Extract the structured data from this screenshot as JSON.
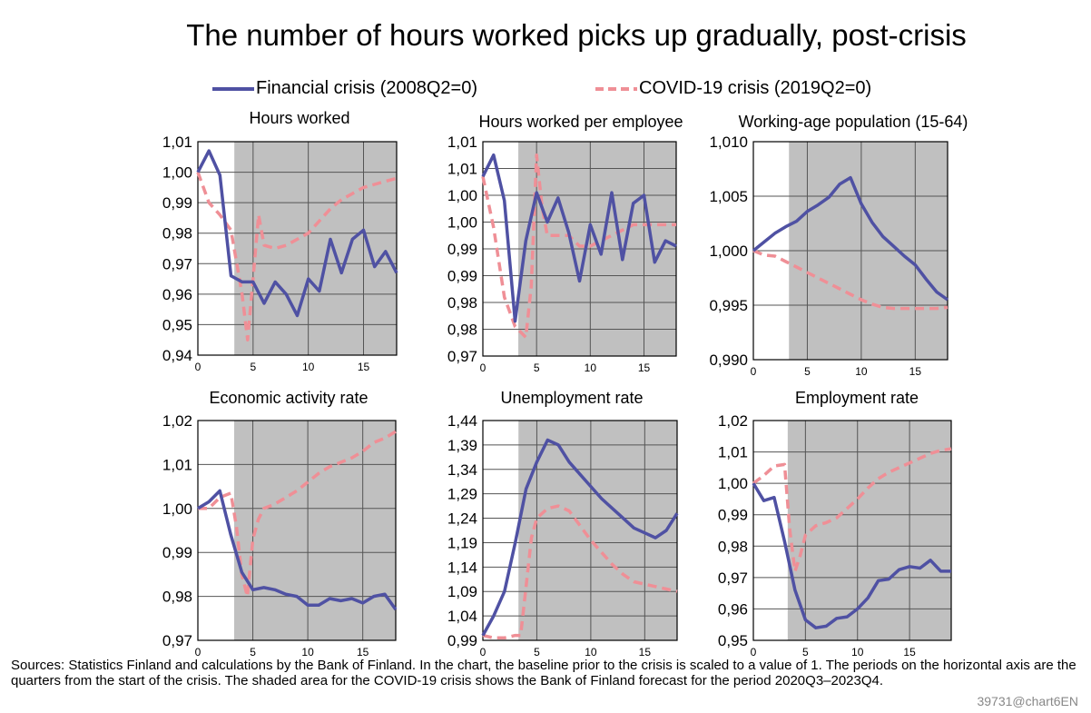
{
  "title": "The number of hours worked picks up gradually, post-crisis",
  "legend": {
    "financial": "Financial crisis (2008Q2=0)",
    "covid": "COVID-19 crisis (2019Q2=0)"
  },
  "colors": {
    "financial": "#4f51a3",
    "covid": "#ef8f96",
    "shade": "#c0c0c0"
  },
  "footnote": "Sources: Statistics Finland and calculations by the Bank of Finland. In the chart, the baseline prior to the crisis is scaled to a value of 1. The periods on the horizontal axis are the quarters from the start of the crisis. The shaded area for the COVID-19 crisis shows the Bank of Finland forecast for the period 2020Q3–2023Q4.",
  "source_id": "39731@chart6EN",
  "chart_data": [
    {
      "type": "line",
      "title": "Hours worked",
      "xlim": [
        0,
        18
      ],
      "ylim": [
        0.94,
        1.01
      ],
      "xticks": [
        "0",
        "5",
        "10",
        "15"
      ],
      "yticks": [
        "1,01",
        "1,00",
        "0,99",
        "0,98",
        "0,97",
        "0,96",
        "0,95",
        "0,94"
      ],
      "shaded_from": 3.3,
      "series": [
        {
          "name": "Financial crisis (2008Q2=0)",
          "x": [
            0,
            1,
            2,
            3,
            4,
            5,
            6,
            7,
            8,
            9,
            10,
            11,
            12,
            13,
            14,
            15,
            16,
            17,
            18
          ],
          "y": [
            1.0,
            1.007,
            0.999,
            0.966,
            0.964,
            0.964,
            0.957,
            0.964,
            0.96,
            0.953,
            0.965,
            0.961,
            0.978,
            0.967,
            0.978,
            0.981,
            0.969,
            0.974,
            0.967
          ]
        },
        {
          "name": "COVID-19 crisis (2019Q2=0)",
          "x": [
            0,
            1,
            2,
            3,
            4,
            4.5,
            5,
            5.5,
            6,
            7,
            8,
            9,
            10,
            11,
            12,
            13,
            14,
            15,
            16,
            17,
            18
          ],
          "y": [
            1.0,
            0.99,
            0.986,
            0.981,
            0.96,
            0.945,
            0.965,
            0.986,
            0.976,
            0.975,
            0.976,
            0.978,
            0.98,
            0.984,
            0.988,
            0.991,
            0.993,
            0.995,
            0.996,
            0.997,
            0.998
          ]
        }
      ]
    },
    {
      "type": "line",
      "title": "Hours worked per employee",
      "xlim": [
        0,
        18
      ],
      "ylim": [
        0.97,
        1.01
      ],
      "xticks": [
        "0",
        "5",
        "10",
        "15"
      ],
      "yticks": [
        "1,01",
        "1,01",
        "1,00",
        "1,00",
        "0,99",
        "0,99",
        "0,98",
        "0,98",
        "0,97"
      ],
      "shaded_from": 3.3,
      "series": [
        {
          "name": "Financial crisis (2008Q2=0)",
          "x": [
            0,
            1,
            2,
            3,
            4,
            5,
            6,
            7,
            8,
            9,
            10,
            11,
            12,
            13,
            14,
            15,
            16,
            17,
            18
          ],
          "y": [
            1.0035,
            1.0075,
            0.999,
            0.9765,
            0.9915,
            1.0005,
            0.995,
            0.9995,
            0.993,
            0.984,
            0.9945,
            0.989,
            1.0005,
            0.988,
            0.9985,
            1.0,
            0.9875,
            0.9915,
            0.9905
          ]
        },
        {
          "name": "COVID-19 crisis (2019Q2=0)",
          "x": [
            0,
            1,
            2,
            3,
            4,
            4.5,
            5,
            5.5,
            6,
            7,
            8,
            9,
            10,
            11,
            12,
            13,
            14,
            15,
            16,
            17,
            18
          ],
          "y": [
            1.0035,
            0.994,
            0.981,
            0.9755,
            0.9735,
            0.983,
            1.0075,
            0.998,
            0.9925,
            0.9925,
            0.9925,
            0.9905,
            0.9905,
            0.9915,
            0.9925,
            0.9935,
            0.9945,
            0.9945,
            0.9945,
            0.9945,
            0.9945
          ]
        }
      ]
    },
    {
      "type": "line",
      "title": "Working-age population (15-64)",
      "xlim": [
        0,
        18
      ],
      "ylim": [
        0.99,
        1.01
      ],
      "xticks": [
        "0",
        "5",
        "10",
        "15"
      ],
      "yticks": [
        "1,010",
        "1,005",
        "1,000",
        "0,995",
        "0,990"
      ],
      "shaded_from": 3.3,
      "series": [
        {
          "name": "Financial crisis (2008Q2=0)",
          "x": [
            0,
            1,
            2,
            3,
            4,
            5,
            6,
            7,
            8,
            9,
            10,
            11,
            12,
            13,
            14,
            15,
            16,
            17,
            18
          ],
          "y": [
            1.0,
            1.0008,
            1.0016,
            1.0022,
            1.0027,
            1.0036,
            1.0042,
            1.0049,
            1.0061,
            1.0067,
            1.0043,
            1.0026,
            1.0013,
            1.0004,
            0.9995,
            0.9987,
            0.9974,
            0.9962,
            0.9955
          ]
        },
        {
          "name": "COVID-19 crisis (2019Q2=0)",
          "x": [
            0,
            1,
            2,
            3,
            4,
            5,
            6,
            7,
            8,
            9,
            10,
            11,
            12,
            13,
            14,
            15,
            16,
            17,
            18
          ],
          "y": [
            1.0,
            0.9996,
            0.9995,
            0.999,
            0.9985,
            0.998,
            0.9975,
            0.997,
            0.9965,
            0.996,
            0.9955,
            0.9951,
            0.9948,
            0.9947,
            0.9947,
            0.9947,
            0.9947,
            0.9947,
            0.9948
          ]
        }
      ]
    },
    {
      "type": "line",
      "title": "Economic activity rate",
      "xlim": [
        0,
        18
      ],
      "ylim": [
        0.97,
        1.02
      ],
      "xticks": [
        "0",
        "5",
        "10",
        "15"
      ],
      "yticks": [
        "1,02",
        "1,01",
        "1,00",
        "0,99",
        "0,98",
        "0,97"
      ],
      "shaded_from": 3.3,
      "series": [
        {
          "name": "Financial crisis (2008Q2=0)",
          "x": [
            0,
            1,
            2,
            3,
            4,
            5,
            6,
            7,
            8,
            9,
            10,
            11,
            12,
            13,
            14,
            15,
            16,
            17,
            18
          ],
          "y": [
            1.0,
            1.0015,
            1.004,
            0.994,
            0.9855,
            0.9815,
            0.982,
            0.9815,
            0.9805,
            0.98,
            0.978,
            0.978,
            0.9795,
            0.979,
            0.9795,
            0.9785,
            0.98,
            0.9805,
            0.977
          ]
        },
        {
          "name": "COVID-19 crisis (2019Q2=0)",
          "x": [
            0,
            1,
            2,
            3,
            3.5,
            4,
            4.5,
            5,
            5.5,
            6,
            7,
            8,
            9,
            10,
            11,
            12,
            13,
            14,
            15,
            16,
            17,
            18
          ],
          "y": [
            1.0,
            1.0,
            1.0025,
            1.0035,
            0.996,
            0.985,
            0.98,
            0.993,
            0.9975,
            1.0,
            1.001,
            1.0025,
            1.004,
            1.006,
            1.008,
            1.0095,
            1.0105,
            1.0115,
            1.013,
            1.015,
            1.016,
            1.0175
          ]
        }
      ]
    },
    {
      "type": "line",
      "title": "Unemployment  rate",
      "xlim": [
        0,
        18
      ],
      "ylim": [
        0.99,
        1.44
      ],
      "xticks": [
        "0",
        "5",
        "10",
        "15"
      ],
      "yticks": [
        "1,44",
        "1,39",
        "1,34",
        "1,29",
        "1,24",
        "1,19",
        "1,14",
        "1,09",
        "1,04",
        "0,99"
      ],
      "shaded_from": 3.3,
      "series": [
        {
          "name": "Financial crisis (2008Q2=0)",
          "x": [
            0,
            1,
            2,
            3,
            4,
            5,
            6,
            7,
            8,
            9,
            10,
            11,
            12,
            13,
            14,
            15,
            16,
            17,
            18
          ],
          "y": [
            1.0,
            1.04,
            1.09,
            1.19,
            1.3,
            1.355,
            1.4,
            1.39,
            1.355,
            1.33,
            1.305,
            1.28,
            1.26,
            1.24,
            1.22,
            1.21,
            1.2,
            1.215,
            1.25
          ]
        },
        {
          "name": "COVID-19 crisis (2019Q2=0)",
          "x": [
            0,
            1,
            2,
            3,
            3.5,
            4,
            4.5,
            5,
            6,
            7,
            8,
            9,
            10,
            11,
            12,
            13,
            14,
            15,
            16,
            17,
            18
          ],
          "y": [
            1.0,
            0.995,
            0.995,
            1.0,
            1.0,
            1.1,
            1.2,
            1.24,
            1.26,
            1.265,
            1.255,
            1.225,
            1.195,
            1.17,
            1.145,
            1.125,
            1.11,
            1.105,
            1.1,
            1.095,
            1.09
          ]
        }
      ]
    },
    {
      "type": "line",
      "title": "Employment rate",
      "xlim": [
        0,
        19
      ],
      "ylim": [
        0.95,
        1.02
      ],
      "xticks": [
        "0",
        "5",
        "10",
        "15"
      ],
      "yticks": [
        "1,02",
        "1,01",
        "1,00",
        "0,99",
        "0,98",
        "0,97",
        "0,96",
        "0,95"
      ],
      "shaded_from": 3.3,
      "series": [
        {
          "name": "Financial crisis (2008Q2=0)",
          "x": [
            0,
            1,
            2,
            3,
            4,
            5,
            6,
            7,
            8,
            9,
            10,
            11,
            12,
            13,
            14,
            15,
            16,
            17,
            18,
            19
          ],
          "y": [
            1.0,
            0.9945,
            0.9955,
            0.9815,
            0.966,
            0.9565,
            0.954,
            0.9545,
            0.957,
            0.9575,
            0.96,
            0.9635,
            0.969,
            0.9695,
            0.9725,
            0.9735,
            0.973,
            0.9755,
            0.972,
            0.972
          ]
        },
        {
          "name": "COVID-19 crisis (2019Q2=0)",
          "x": [
            0,
            1,
            2,
            3,
            3.5,
            4,
            4.5,
            5,
            6,
            7,
            8,
            9,
            10,
            11,
            12,
            13,
            14,
            15,
            16,
            17,
            18,
            19
          ],
          "y": [
            1.0,
            1.0025,
            1.0055,
            1.006,
            0.985,
            0.972,
            0.977,
            0.9835,
            0.9865,
            0.9875,
            0.989,
            0.992,
            0.995,
            0.9985,
            1.0015,
            1.0035,
            1.005,
            1.0065,
            1.008,
            1.0095,
            1.0105,
            1.011
          ]
        }
      ]
    }
  ]
}
